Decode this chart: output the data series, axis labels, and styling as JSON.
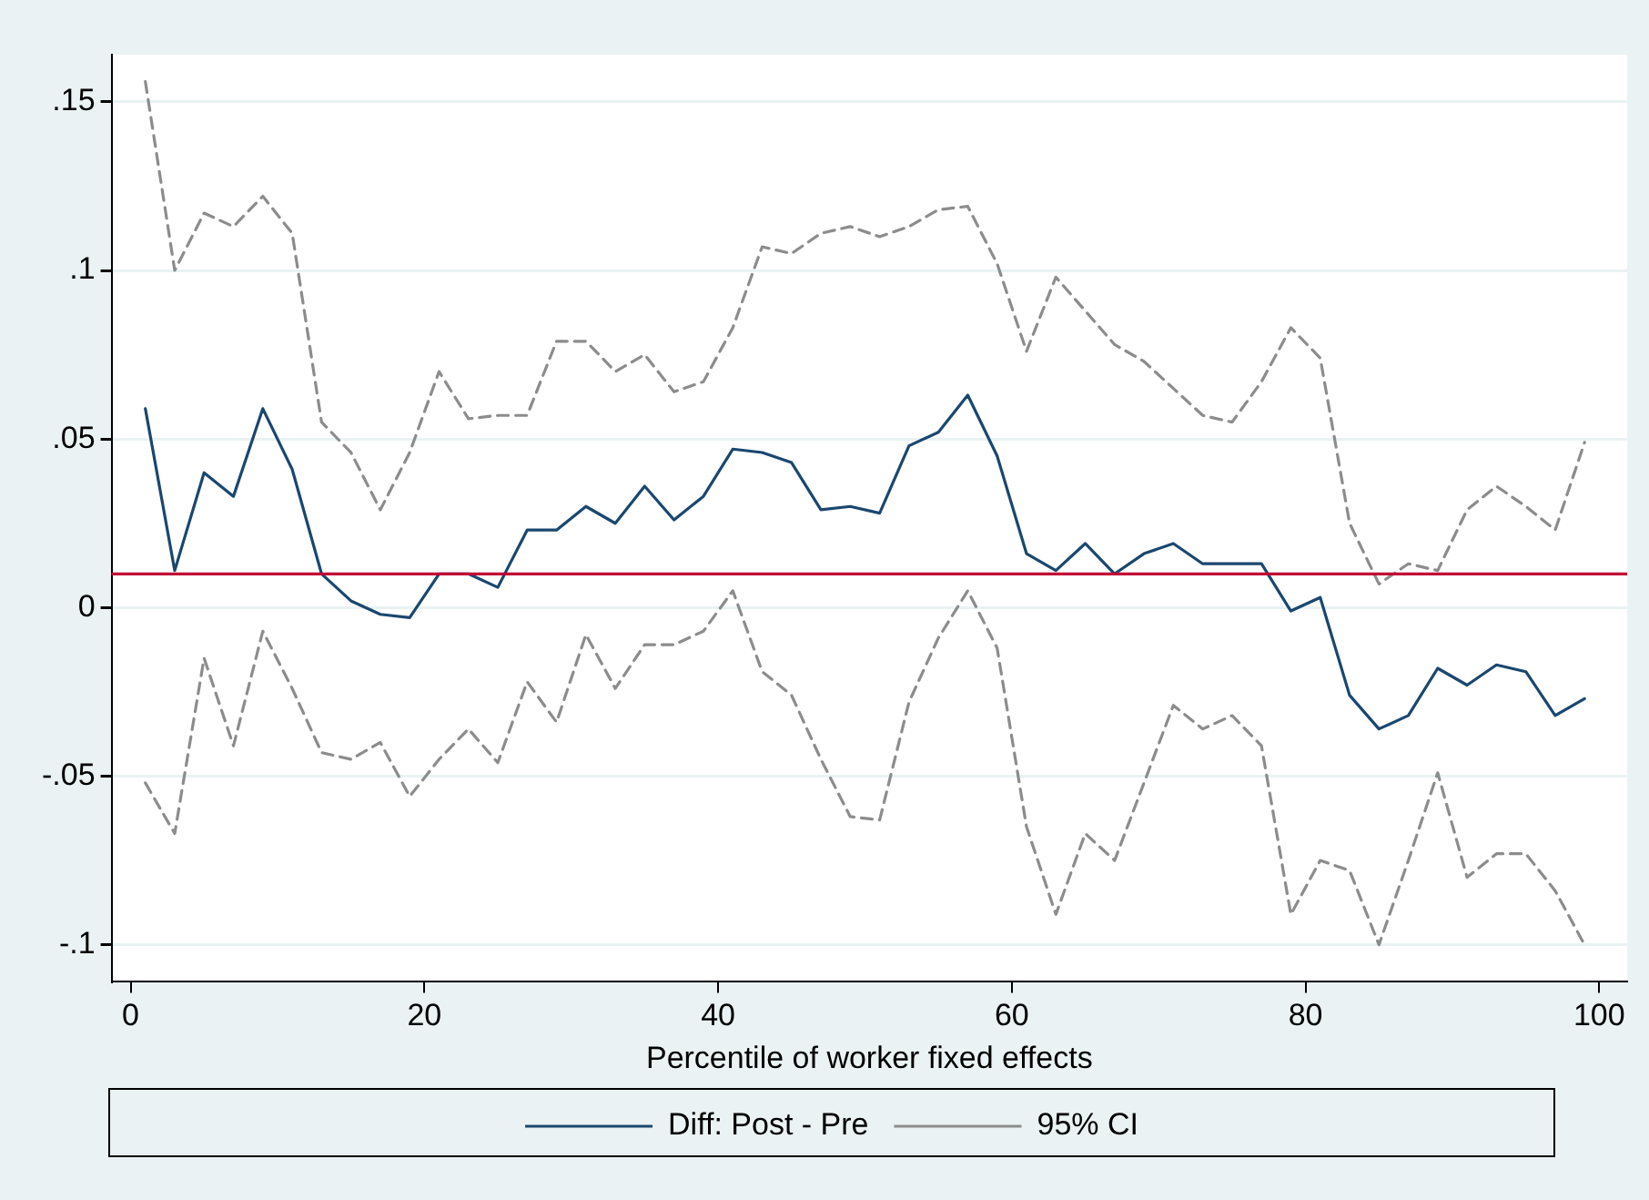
{
  "chart_data": {
    "type": "line",
    "xlabel": "Percentile of worker fixed effects",
    "x": [
      1,
      3,
      5,
      7,
      9,
      11,
      13,
      15,
      17,
      19,
      21,
      23,
      25,
      27,
      29,
      31,
      33,
      35,
      37,
      39,
      41,
      43,
      45,
      47,
      49,
      51,
      53,
      55,
      57,
      59,
      61,
      63,
      65,
      67,
      69,
      71,
      73,
      75,
      77,
      79,
      81,
      83,
      85,
      87,
      89,
      91,
      93,
      95,
      97,
      99
    ],
    "series": [
      {
        "name": "Diff: Post - Pre",
        "color": "#1a476f",
        "line_style": "solid",
        "values": [
          0.059,
          0.011,
          0.04,
          0.033,
          0.059,
          0.041,
          0.01,
          0.002,
          -0.002,
          -0.003,
          0.01,
          0.01,
          0.006,
          0.023,
          0.023,
          0.03,
          0.025,
          0.036,
          0.026,
          0.033,
          0.047,
          0.046,
          0.043,
          0.029,
          0.03,
          0.028,
          0.048,
          0.052,
          0.063,
          0.045,
          0.016,
          0.011,
          0.019,
          0.01,
          0.016,
          0.019,
          0.013,
          0.013,
          0.013,
          -0.001,
          0.003,
          -0.026,
          -0.036,
          -0.032,
          -0.018,
          -0.023,
          -0.017,
          -0.019,
          -0.032,
          -0.027
        ]
      },
      {
        "name": "95% CI",
        "color": "#8c8c8c",
        "line_style": "dashed",
        "values": [
          0.156,
          0.1,
          0.117,
          0.113,
          0.122,
          0.111,
          0.055,
          0.046,
          0.029,
          0.046,
          0.07,
          0.056,
          0.057,
          0.057,
          0.079,
          0.079,
          0.07,
          0.075,
          0.064,
          0.067,
          0.083,
          0.107,
          0.105,
          0.111,
          0.113,
          0.11,
          0.113,
          0.118,
          0.119,
          0.102,
          0.076,
          0.098,
          0.088,
          0.078,
          0.073,
          0.065,
          0.057,
          0.055,
          0.067,
          0.083,
          0.074,
          0.025,
          0.007,
          0.013,
          0.011,
          0.029,
          0.036,
          0.03,
          0.023,
          0.049
        ]
      },
      {
        "color": "#8c8c8c",
        "line_style": "dashed",
        "values": [
          -0.052,
          -0.067,
          -0.015,
          -0.041,
          -0.007,
          -0.024,
          -0.043,
          -0.045,
          -0.04,
          -0.056,
          -0.045,
          -0.036,
          -0.046,
          -0.022,
          -0.034,
          -0.008,
          -0.024,
          -0.011,
          -0.011,
          -0.007,
          0.005,
          -0.019,
          -0.026,
          -0.045,
          -0.062,
          -0.063,
          -0.028,
          -0.009,
          0.005,
          -0.012,
          -0.065,
          -0.091,
          -0.067,
          -0.075,
          -0.052,
          -0.029,
          -0.036,
          -0.032,
          -0.041,
          -0.091,
          -0.075,
          -0.078,
          -0.1,
          -0.075,
          -0.049,
          -0.08,
          -0.073,
          -0.073,
          -0.084,
          -0.1
        ]
      }
    ],
    "xlim": [
      -1.3,
      101.9
    ],
    "xticks": [
      0,
      20,
      40,
      60,
      80,
      100
    ],
    "ylim": [
      -0.111,
      0.164
    ],
    "yticks": [
      {
        "value": -0.1,
        "label": "-.1"
      },
      {
        "value": -0.05,
        "label": "-.05"
      },
      {
        "value": 0,
        "label": "0"
      },
      {
        "value": 0.05,
        "label": ".05"
      },
      {
        "value": 0.1,
        "label": ".1"
      },
      {
        "value": 0.15,
        "label": ".15"
      }
    ],
    "ref_lines": [
      {
        "axis": "y",
        "value": 0.01,
        "color": "#c10534"
      }
    ],
    "grid": "y",
    "legend": "bottom",
    "marker": "none"
  }
}
